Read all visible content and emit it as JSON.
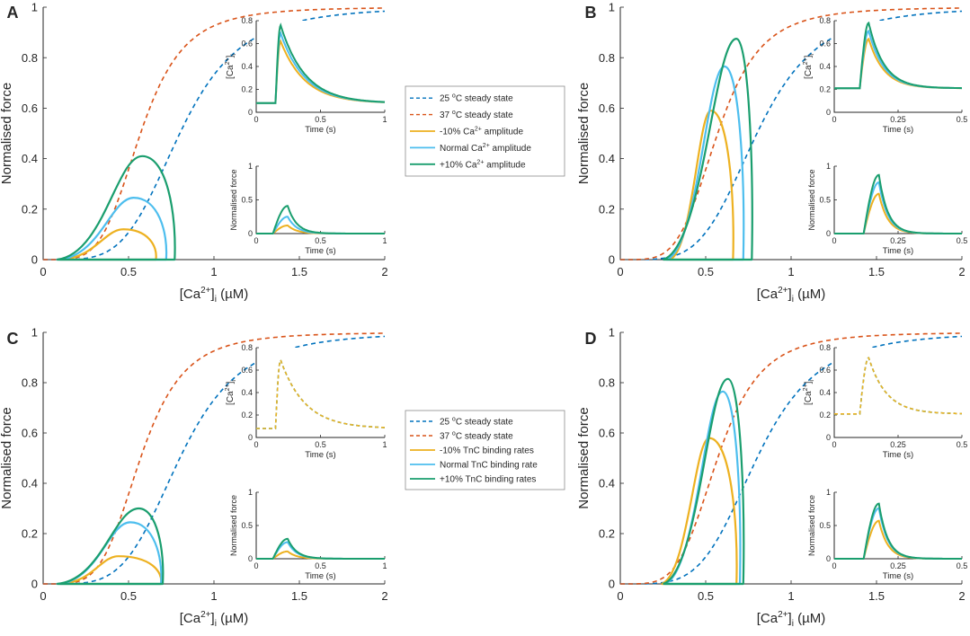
{
  "colors": {
    "c25": "#0072BD",
    "c37": "#D95319",
    "minus": "#EDB120",
    "normal": "#4DBEEE",
    "plus": "#1A9E6E",
    "axis": "#262626"
  },
  "chart_data": [
    {
      "panel": "A",
      "type": "line",
      "xlabel_prefix": "[Ca",
      "xlabel_sup": "2+",
      "xlabel_mid": "]",
      "xlabel_sub": "i",
      "xlabel_suffix": " (µM)",
      "ylabel": "Normalised force",
      "xlim": [
        0,
        2
      ],
      "ylim": [
        0,
        1
      ],
      "xticks": [
        "0",
        "0.5",
        "1",
        "1.5",
        "2"
      ],
      "yticks": [
        "0",
        "0.2",
        "0.4",
        "0.6",
        "0.8",
        "1"
      ],
      "loops": [
        {
          "series": "minus",
          "start": 0.1,
          "end": 0.66,
          "peak_x": 0.47,
          "peak": 0.12
        },
        {
          "series": "normal",
          "start": 0.09,
          "end": 0.72,
          "peak_x": 0.53,
          "peak": 0.245
        },
        {
          "series": "plus",
          "start": 0.08,
          "end": 0.77,
          "peak_x": 0.58,
          "peak": 0.41
        }
      ],
      "inset_ca": {
        "ylabel_prefix": "[Ca",
        "ylabel_sup": "2+",
        "ylabel_mid": "]",
        "ylabel_sub": "i",
        "xlabel": "Time (s)",
        "xlim": [
          0,
          1
        ],
        "ylim": [
          0,
          0.8
        ],
        "xticks": [
          "0",
          "0.5",
          "1"
        ],
        "yticks": [
          "0",
          "0.2",
          "0.4",
          "0.6",
          "0.8"
        ],
        "baseline": 0.08,
        "onset": 0.15,
        "tpeak": 0.19,
        "tau": 0.19,
        "peaks": {
          "minus": 0.62,
          "normal": 0.69,
          "plus": 0.76
        },
        "dashed": false
      },
      "inset_force": {
        "ylabel": "Normalised force",
        "xlabel": "Time (s)",
        "xlim": [
          0,
          1
        ],
        "ylim": [
          0,
          1
        ],
        "xticks": [
          "0",
          "0.5",
          "1"
        ],
        "yticks": [
          "0",
          "0.5",
          "1"
        ],
        "onset": 0.13,
        "tpeak": 0.245,
        "tau": 0.07,
        "peaks": {
          "minus": 0.12,
          "normal": 0.25,
          "plus": 0.41
        }
      }
    },
    {
      "panel": "B",
      "type": "line",
      "xlabel_prefix": "[Ca",
      "xlabel_sup": "2+",
      "xlabel_mid": "]",
      "xlabel_sub": "i",
      "xlabel_suffix": " (µM)",
      "ylabel": "Normalised force",
      "xlim": [
        0,
        2
      ],
      "ylim": [
        0,
        1
      ],
      "xticks": [
        "0",
        "0.5",
        "1",
        "1.5",
        "2"
      ],
      "yticks": [
        "0",
        "0.2",
        "0.4",
        "0.6",
        "0.8",
        "1"
      ],
      "loops": [
        {
          "series": "minus",
          "start": 0.29,
          "end": 0.66,
          "peak_x": 0.53,
          "peak": 0.59
        },
        {
          "series": "normal",
          "start": 0.27,
          "end": 0.72,
          "peak_x": 0.61,
          "peak": 0.765
        },
        {
          "series": "plus",
          "start": 0.25,
          "end": 0.77,
          "peak_x": 0.68,
          "peak": 0.875
        }
      ],
      "inset_ca": {
        "ylabel_prefix": "[Ca",
        "ylabel_sup": "2+",
        "ylabel_mid": "]",
        "ylabel_sub": "i",
        "xlabel": "Time (s)",
        "xlim": [
          0,
          0.5
        ],
        "ylim": [
          0,
          0.8
        ],
        "xticks": [
          "0",
          "0.25",
          "0.5"
        ],
        "yticks": [
          "0",
          "0.2",
          "0.4",
          "0.6",
          "0.8"
        ],
        "baseline": 0.21,
        "onset": 0.1,
        "tpeak": 0.135,
        "tau": 0.06,
        "peaks": {
          "minus": 0.64,
          "normal": 0.71,
          "plus": 0.78
        },
        "dashed": false
      },
      "inset_force": {
        "ylabel": "Normalised force",
        "xlabel": "Time (s)",
        "xlim": [
          0,
          0.5
        ],
        "ylim": [
          0,
          1
        ],
        "xticks": [
          "0",
          "0.25",
          "0.5"
        ],
        "yticks": [
          "0",
          "0.5",
          "1"
        ],
        "onset": 0.115,
        "tpeak": 0.175,
        "tau": 0.035,
        "peaks": {
          "minus": 0.59,
          "normal": 0.76,
          "plus": 0.87
        }
      }
    },
    {
      "panel": "C",
      "type": "line",
      "xlabel_prefix": "[Ca",
      "xlabel_sup": "2+",
      "xlabel_mid": "]",
      "xlabel_sub": "i",
      "xlabel_suffix": " (µM)",
      "ylabel": "Normalised force",
      "xlim": [
        0,
        2
      ],
      "ylim": [
        0,
        1
      ],
      "xticks": [
        "0",
        "0.5",
        "1",
        "1.5",
        "2"
      ],
      "yticks": [
        "0",
        "0.2",
        "0.4",
        "0.6",
        "0.8",
        "1"
      ],
      "loops": [
        {
          "series": "minus",
          "start": 0.1,
          "end": 0.69,
          "peak_x": 0.44,
          "peak": 0.11
        },
        {
          "series": "normal",
          "start": 0.09,
          "end": 0.69,
          "peak_x": 0.51,
          "peak": 0.245
        },
        {
          "series": "plus",
          "start": 0.08,
          "end": 0.7,
          "peak_x": 0.56,
          "peak": 0.3
        }
      ],
      "inset_ca": {
        "ylabel_prefix": "[Ca",
        "ylabel_sup": "2+",
        "ylabel_mid": "]",
        "ylabel_sub": "i",
        "xlabel": "Time (s)",
        "xlim": [
          0,
          1
        ],
        "ylim": [
          0,
          0.8
        ],
        "xticks": [
          "0",
          "0.5",
          "1"
        ],
        "yticks": [
          "0",
          "0.2",
          "0.4",
          "0.6",
          "0.8"
        ],
        "baseline": 0.08,
        "onset": 0.15,
        "tpeak": 0.19,
        "tau": 0.19,
        "peaks": {
          "minus": 0.69,
          "normal": 0.69,
          "plus": 0.69
        },
        "dashed": true
      },
      "inset_force": {
        "ylabel": "Normalised force",
        "xlabel": "Time (s)",
        "xlim": [
          0,
          1
        ],
        "ylim": [
          0,
          1
        ],
        "xticks": [
          "0",
          "0.5",
          "1"
        ],
        "yticks": [
          "0",
          "0.5",
          "1"
        ],
        "onset": 0.13,
        "tpeak": 0.245,
        "tau": 0.07,
        "peaks": {
          "minus": 0.11,
          "normal": 0.25,
          "plus": 0.3
        }
      }
    },
    {
      "panel": "D",
      "type": "line",
      "xlabel_prefix": "[Ca",
      "xlabel_sup": "2+",
      "xlabel_mid": "]",
      "xlabel_sub": "i",
      "xlabel_suffix": " (µM)",
      "ylabel": "Normalised force",
      "xlim": [
        0,
        2
      ],
      "ylim": [
        0,
        1
      ],
      "xticks": [
        "0",
        "0.5",
        "1",
        "1.5",
        "2"
      ],
      "yticks": [
        "0",
        "0.2",
        "0.4",
        "0.6",
        "0.8",
        "1"
      ],
      "loops": [
        {
          "series": "minus",
          "start": 0.24,
          "end": 0.68,
          "peak_x": 0.52,
          "peak": 0.58
        },
        {
          "series": "normal",
          "start": 0.26,
          "end": 0.7,
          "peak_x": 0.6,
          "peak": 0.765
        },
        {
          "series": "plus",
          "start": 0.25,
          "end": 0.72,
          "peak_x": 0.63,
          "peak": 0.815
        }
      ],
      "inset_ca": {
        "ylabel_prefix": "[Ca",
        "ylabel_sup": "2+",
        "ylabel_mid": "]",
        "ylabel_sub": "i",
        "xlabel": "Time (s)",
        "xlim": [
          0,
          0.5
        ],
        "ylim": [
          0,
          0.8
        ],
        "xticks": [
          "0",
          "0.25",
          "0.5"
        ],
        "yticks": [
          "0",
          "0.2",
          "0.4",
          "0.6",
          "0.8"
        ],
        "baseline": 0.21,
        "onset": 0.1,
        "tpeak": 0.135,
        "tau": 0.07,
        "peaks": {
          "minus": 0.71,
          "normal": 0.71,
          "plus": 0.71
        },
        "dashed": true
      },
      "inset_force": {
        "ylabel": "Normalised force",
        "xlabel": "Time (s)",
        "xlim": [
          0,
          0.5
        ],
        "ylim": [
          0,
          1
        ],
        "xticks": [
          "0",
          "0.25",
          "0.5"
        ],
        "yticks": [
          "0",
          "0.5",
          "1"
        ],
        "onset": 0.115,
        "tpeak": 0.175,
        "tau": 0.035,
        "peaks": {
          "minus": 0.57,
          "normal": 0.76,
          "plus": 0.83
        }
      }
    }
  ],
  "steady_state": {
    "c25": {
      "ec50": 0.8,
      "hill": 4.5
    },
    "c37": {
      "ec50": 0.57,
      "hill": 4.5
    }
  },
  "legend_top": {
    "entries": [
      {
        "series": "c25",
        "dashed": true,
        "text": "25 ",
        "sup": "o",
        "text2": "C steady state"
      },
      {
        "series": "c37",
        "dashed": true,
        "text": "37 ",
        "sup": "o",
        "text2": "C steady state"
      },
      {
        "series": "minus",
        "dashed": false,
        "text": "-10% Ca",
        "sup": "2+",
        "text2": " amplitude"
      },
      {
        "series": "normal",
        "dashed": false,
        "text": "Normal Ca",
        "sup": "2+",
        "text2": " amplitude"
      },
      {
        "series": "plus",
        "dashed": false,
        "text": "+10% Ca",
        "sup": "2+",
        "text2": " amplitude"
      }
    ]
  },
  "legend_bottom": {
    "entries": [
      {
        "series": "c25",
        "dashed": true,
        "text": "25 ",
        "sup": "o",
        "text2": "C steady state"
      },
      {
        "series": "c37",
        "dashed": true,
        "text": "37 ",
        "sup": "o",
        "text2": "C steady state"
      },
      {
        "series": "minus",
        "dashed": false,
        "text": "-10% TnC binding rates",
        "sup": "",
        "text2": ""
      },
      {
        "series": "normal",
        "dashed": false,
        "text": "Normal TnC binding rate",
        "sup": "",
        "text2": ""
      },
      {
        "series": "plus",
        "dashed": false,
        "text": "+10% TnC binding rates",
        "sup": "",
        "text2": ""
      }
    ]
  }
}
